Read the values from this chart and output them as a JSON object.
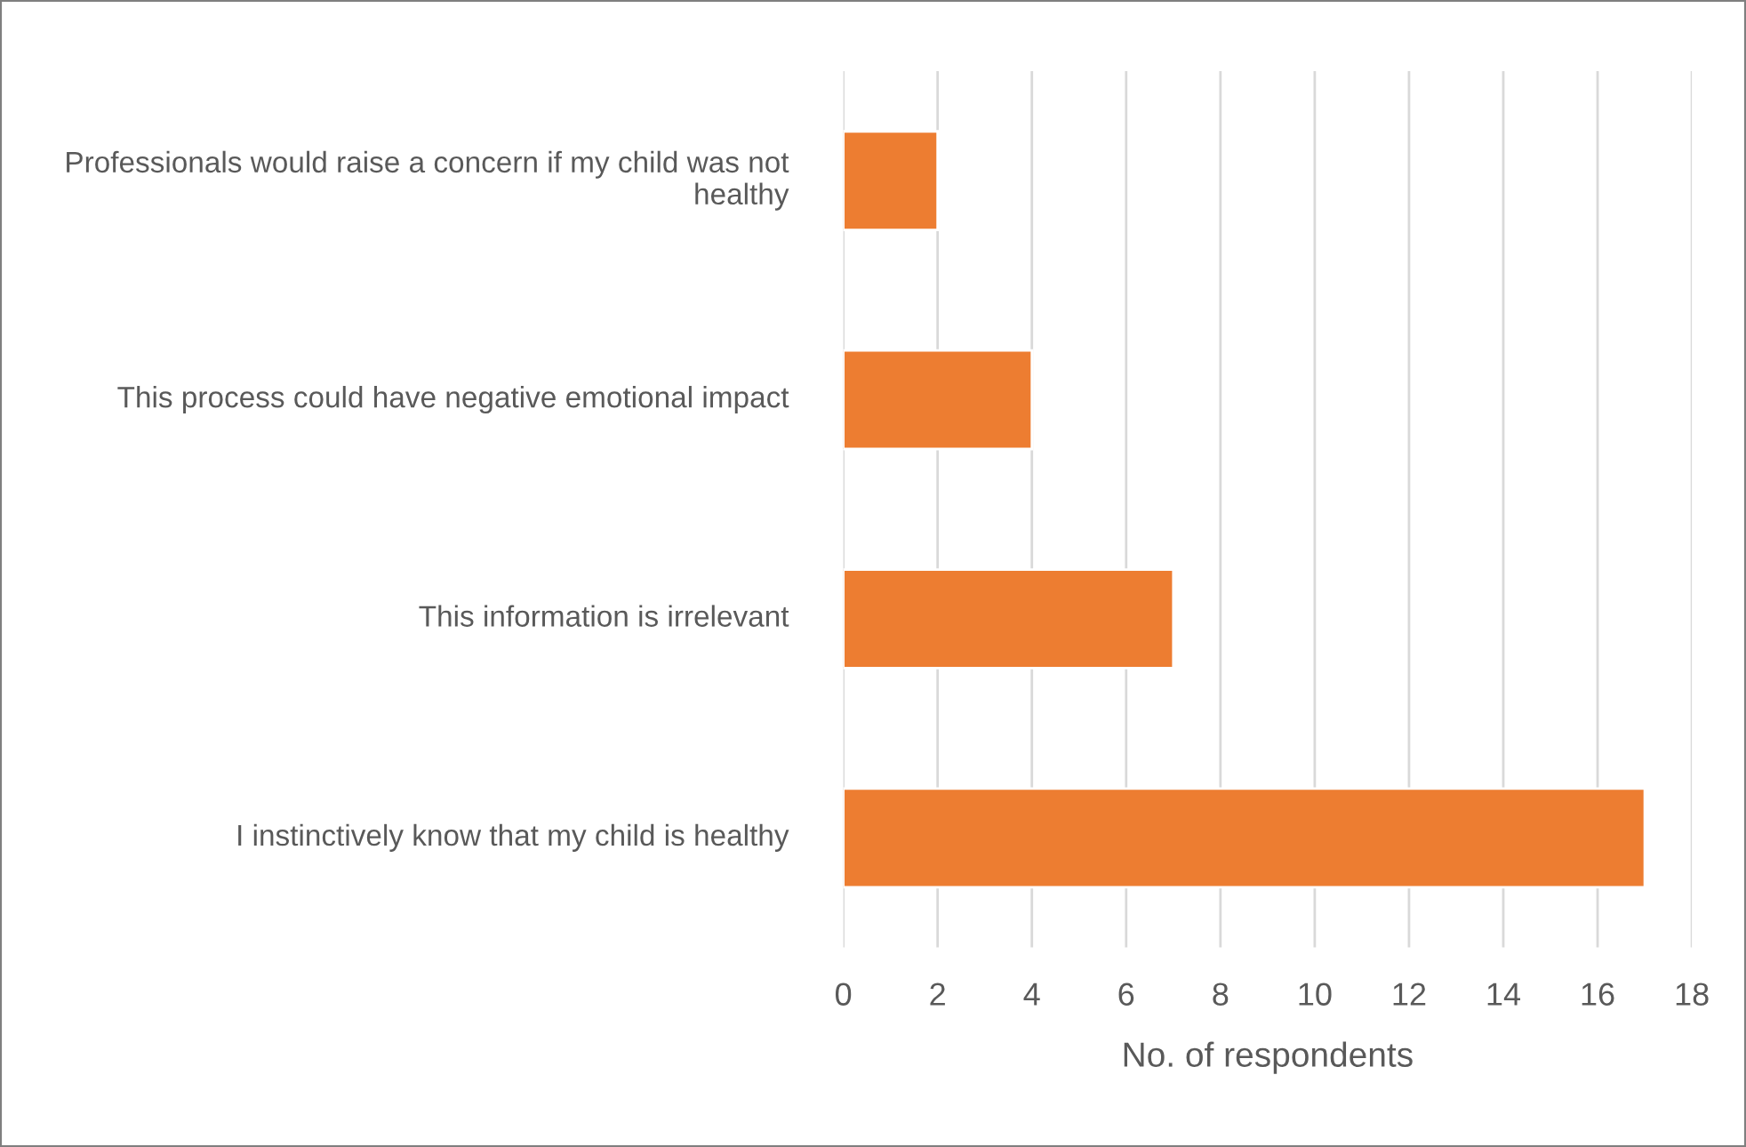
{
  "chart_data": {
    "type": "bar",
    "orientation": "horizontal",
    "xlabel": "No. of respondents",
    "categories": [
      "Professionals would raise a concern if my child was not healthy",
      "This process could have negative emotional impact",
      "This information is irrelevant",
      "I instinctively know that my child is healthy"
    ],
    "values": [
      2,
      4,
      7,
      17
    ],
    "color": "#ed7d31",
    "xlim": [
      0,
      18
    ],
    "xticks": [
      0,
      2,
      4,
      6,
      8,
      10,
      12,
      14,
      16,
      18
    ],
    "grid": "x"
  }
}
